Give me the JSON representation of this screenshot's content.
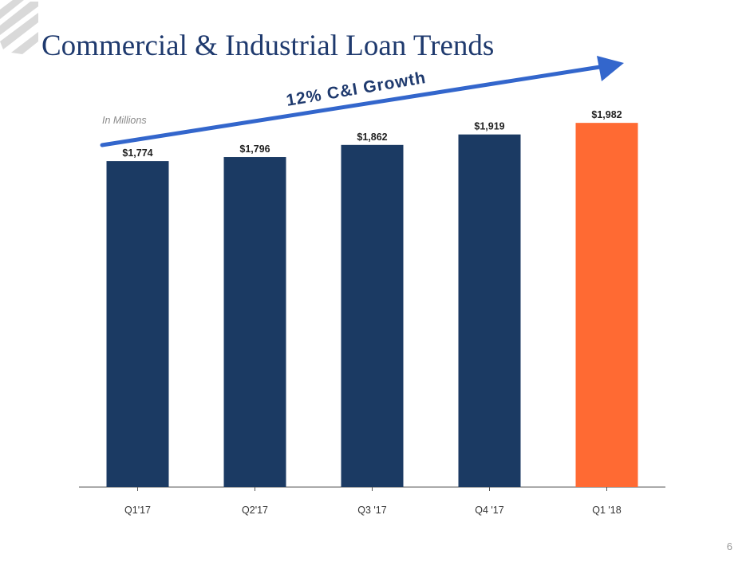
{
  "header": {
    "title": "Commercial & Industrial Loan Trends"
  },
  "page_number": "6",
  "colors": {
    "title": "#1f3a6e",
    "bar_primary": "#1b3a63",
    "bar_highlight": "#ff6a33",
    "arrow": "#3366cc",
    "logo": "#d9d9d9"
  },
  "chart_data": {
    "type": "bar",
    "categories": [
      "Q1'17",
      "Q2'17",
      "Q3 '17",
      "Q4 '17",
      "Q1 '18"
    ],
    "values": [
      1774,
      1796,
      1862,
      1919,
      1982
    ],
    "value_labels": [
      "$1,774",
      "$1,796",
      "$1,862",
      "$1,919",
      "$1,982"
    ],
    "highlight_index": 4,
    "unit_note": "In Millions",
    "annotation": "12% C&I Growth",
    "annotation_arrow": "upward-right",
    "ylim": [
      0,
      2000
    ],
    "grid": false,
    "legend": "none"
  }
}
